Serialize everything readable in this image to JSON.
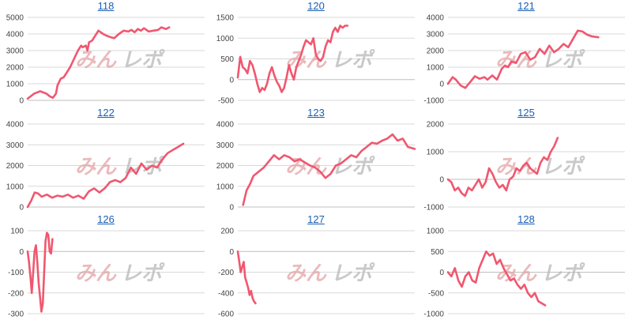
{
  "watermark": {
    "part1": "みん",
    "part2": "レポ"
  },
  "colors": {
    "line": "#f0576f",
    "grid": "#d9d9d9",
    "axis": "#444444",
    "title": "#1a5fb4"
  },
  "chart_data": [
    {
      "type": "line",
      "title": "118",
      "ylim": [
        0,
        5000
      ],
      "yticks": [
        0,
        1000,
        2000,
        3000,
        4000,
        5000
      ],
      "x": [
        0,
        4,
        8,
        12,
        14,
        16,
        18,
        19,
        21,
        23,
        25,
        27,
        30,
        32,
        34,
        35,
        37,
        38,
        39,
        40,
        41,
        43,
        45,
        48,
        50,
        53,
        55,
        58,
        61,
        64,
        66,
        68,
        70,
        72,
        74,
        77,
        80,
        83,
        85,
        88,
        90
      ],
      "values": [
        100,
        400,
        550,
        400,
        250,
        150,
        400,
        900,
        1300,
        1400,
        1700,
        2000,
        2600,
        3000,
        3300,
        3200,
        3300,
        3000,
        3500,
        3550,
        3600,
        3900,
        4200,
        4000,
        3900,
        3800,
        3750,
        4000,
        4200,
        4150,
        4250,
        4100,
        4300,
        4200,
        4350,
        4150,
        4200,
        4250,
        4400,
        4300,
        4400
      ]
    },
    {
      "type": "line",
      "title": "120",
      "ylim": [
        -500,
        1500
      ],
      "yticks": [
        -500,
        0,
        500,
        1000,
        1500
      ],
      "x": [
        0,
        1,
        2,
        3,
        4,
        5,
        6,
        7,
        8,
        9,
        10,
        11,
        12,
        13,
        14,
        15,
        16,
        17,
        18,
        19,
        20,
        21,
        22,
        23,
        24,
        25,
        26,
        27,
        28,
        29,
        30,
        31,
        32,
        33,
        34,
        35,
        36,
        37,
        38,
        39,
        40,
        41,
        42,
        43,
        44,
        45
      ],
      "values": [
        50,
        550,
        300,
        250,
        150,
        450,
        350,
        150,
        -100,
        -300,
        -200,
        -250,
        -100,
        150,
        300,
        100,
        -50,
        -150,
        -300,
        -200,
        50,
        350,
        150,
        0,
        300,
        450,
        600,
        800,
        950,
        900,
        850,
        1000,
        600,
        500,
        450,
        550,
        800,
        950,
        900,
        1150,
        1250,
        1150,
        1300,
        1250,
        1300,
        1300
      ]
    },
    {
      "type": "line",
      "title": "121",
      "ylim": [
        -1000,
        4000
      ],
      "yticks": [
        -1000,
        0,
        1000,
        2000,
        3000,
        4000
      ],
      "x": [
        0,
        3,
        5,
        8,
        11,
        14,
        17,
        20,
        23,
        25,
        28,
        31,
        34,
        36,
        38,
        40,
        43,
        46,
        49,
        52,
        55,
        58,
        61,
        64,
        67,
        70,
        73,
        76,
        79,
        82,
        85,
        88,
        91,
        95
      ],
      "values": [
        0,
        400,
        250,
        -100,
        -250,
        100,
        450,
        300,
        400,
        250,
        500,
        250,
        900,
        1100,
        1000,
        1350,
        1250,
        1800,
        1900,
        1450,
        1600,
        2100,
        1800,
        2300,
        1900,
        2100,
        2400,
        2200,
        2700,
        3200,
        3150,
        2950,
        2850,
        2800
      ]
    },
    {
      "type": "line",
      "title": "122",
      "ylim": [
        0,
        4000
      ],
      "yticks": [
        0,
        1000,
        2000,
        3000,
        4000
      ],
      "x": [
        0,
        2,
        4,
        6,
        8,
        11,
        14,
        17,
        20,
        23,
        26,
        29,
        32,
        35,
        38,
        41,
        44,
        47,
        50,
        53,
        56,
        59,
        62,
        65,
        68,
        71,
        74,
        77,
        80,
        83,
        86,
        89
      ],
      "values": [
        0,
        300,
        700,
        650,
        500,
        600,
        450,
        550,
        500,
        600,
        450,
        550,
        400,
        750,
        900,
        700,
        900,
        1200,
        1300,
        1200,
        1400,
        1900,
        1600,
        2100,
        1800,
        2000,
        1900,
        2300,
        2600,
        2750,
        2900,
        3050
      ]
    },
    {
      "type": "line",
      "title": "123",
      "ylim": [
        0,
        4000
      ],
      "yticks": [
        0,
        1000,
        2000,
        3000,
        4000
      ],
      "x": [
        0,
        2,
        4,
        6,
        9,
        12,
        15,
        18,
        21,
        24,
        27,
        30,
        33,
        36,
        39,
        42,
        45,
        48,
        51,
        54,
        57,
        60,
        63,
        66,
        69,
        72,
        75,
        78,
        81,
        84,
        87,
        90,
        93,
        96,
        100
      ],
      "values": [
        100,
        800,
        1100,
        1500,
        1700,
        1900,
        2200,
        2500,
        2300,
        2500,
        2400,
        2200,
        2300,
        2150,
        2000,
        1900,
        1700,
        1400,
        1600,
        2000,
        2100,
        2300,
        2500,
        2400,
        2700,
        2900,
        3100,
        3050,
        3200,
        3300,
        3500,
        3200,
        3300,
        2900,
        2800
      ]
    },
    {
      "type": "line",
      "title": "125",
      "ylim": [
        -1000,
        2000
      ],
      "yticks": [
        -1000,
        0,
        1000,
        2000
      ],
      "x": [
        0,
        2,
        4,
        6,
        8,
        10,
        12,
        14,
        16,
        18,
        20,
        22,
        24,
        26,
        28,
        30,
        32,
        34,
        36,
        38,
        40,
        42,
        44,
        46,
        48,
        50,
        52,
        54,
        56,
        58,
        60,
        62,
        64
      ],
      "values": [
        0,
        -100,
        -400,
        -300,
        -500,
        -600,
        -300,
        -400,
        -200,
        0,
        -300,
        -100,
        400,
        200,
        -100,
        -300,
        -200,
        -400,
        0,
        100,
        400,
        300,
        500,
        600,
        400,
        300,
        200,
        600,
        800,
        700,
        1000,
        1200,
        1500
      ]
    },
    {
      "type": "line",
      "title": "126",
      "ylim": [
        -300,
        100
      ],
      "yticks": [
        -300,
        -200,
        -100,
        0,
        100
      ],
      "x": [
        0,
        0.5,
        1,
        1.5,
        2,
        2.5,
        3,
        3.5,
        4,
        4.5,
        5,
        5.5,
        6,
        6.5,
        7,
        7.5,
        8,
        8.5,
        9
      ],
      "values": [
        0,
        -50,
        -120,
        -200,
        -100,
        0,
        30,
        -50,
        -150,
        -220,
        -290,
        -250,
        -100,
        50,
        90,
        80,
        0,
        -10,
        60
      ]
    },
    {
      "type": "line",
      "title": "127",
      "ylim": [
        -600,
        200
      ],
      "yticks": [
        -600,
        -400,
        -200,
        0,
        200
      ],
      "x": [
        0,
        1,
        2,
        3,
        4,
        5,
        6,
        7,
        8,
        9,
        10,
        11,
        12
      ],
      "values": [
        0,
        -100,
        -200,
        -150,
        -100,
        -250,
        -300,
        -350,
        -420,
        -380,
        -450,
        -480,
        -500
      ]
    },
    {
      "type": "line",
      "title": "128",
      "ylim": [
        -1000,
        1000
      ],
      "yticks": [
        -1000,
        -500,
        0,
        500,
        1000
      ],
      "x": [
        0,
        2,
        4,
        6,
        8,
        10,
        12,
        14,
        16,
        18,
        20,
        22,
        24,
        26,
        28,
        30,
        32,
        34,
        36,
        38,
        40,
        42,
        44,
        46,
        48,
        50,
        52,
        54,
        56
      ],
      "values": [
        0,
        -100,
        100,
        -200,
        -350,
        -100,
        0,
        -200,
        -250,
        100,
        300,
        500,
        400,
        450,
        200,
        300,
        100,
        -50,
        -200,
        -150,
        -300,
        -400,
        -300,
        -500,
        -600,
        -500,
        -700,
        -750,
        -800
      ]
    }
  ]
}
